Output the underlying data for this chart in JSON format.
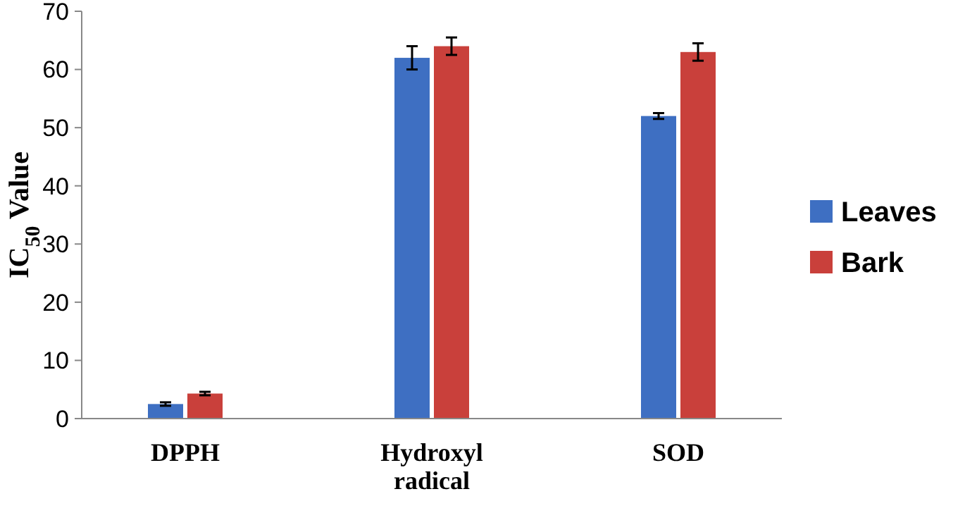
{
  "chart_data": {
    "type": "bar",
    "ylabel": "IC$_{50}$ Value",
    "categories": [
      "DPPH",
      "Hydroxyl radical",
      "SOD"
    ],
    "series": [
      {
        "name": "Leaves",
        "color": "#3e6fc2",
        "values": [
          2.5,
          62,
          52
        ],
        "errors": [
          0.3,
          2,
          0.5
        ]
      },
      {
        "name": "Bark",
        "color": "#c9403b",
        "values": [
          4.3,
          64,
          63
        ],
        "errors": [
          0.3,
          1.5,
          1.5
        ]
      }
    ],
    "ylim": [
      0,
      70
    ],
    "yticks": [
      0,
      10,
      20,
      30,
      40,
      50,
      60,
      70
    ],
    "grid": false,
    "legend": "right"
  }
}
